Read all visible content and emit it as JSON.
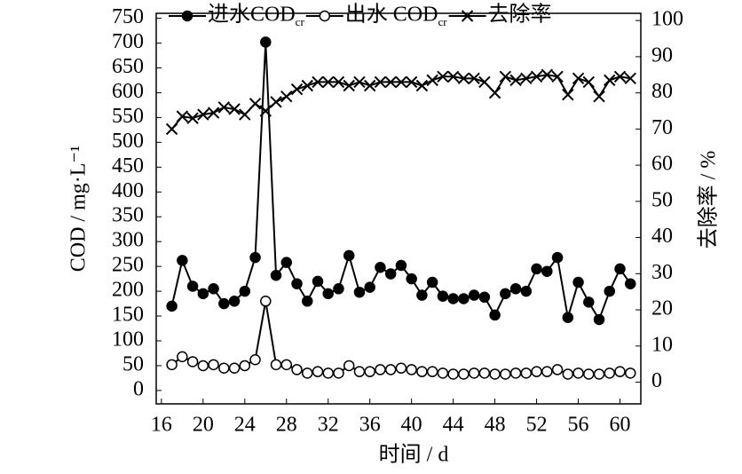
{
  "chart_data": {
    "type": "line",
    "xlabel": "时间 / d",
    "ylabel": "COD / mg·L⁻¹",
    "y2label": "去除率 / %",
    "xlim": [
      15.5,
      62
    ],
    "xticks": [
      16,
      20,
      24,
      28,
      32,
      36,
      40,
      44,
      48,
      52,
      56,
      60
    ],
    "ylim": [
      -27,
      760
    ],
    "yticks": [
      0,
      50,
      100,
      150,
      200,
      250,
      300,
      350,
      400,
      450,
      500,
      550,
      600,
      650,
      700,
      750
    ],
    "y2lim": [
      -6,
      102
    ],
    "y2ticks": [
      0,
      10,
      20,
      30,
      40,
      50,
      60,
      70,
      80,
      90,
      100
    ],
    "x": [
      17,
      18,
      19,
      20,
      21,
      22,
      23,
      24,
      25,
      26,
      27,
      28,
      29,
      30,
      31,
      32,
      33,
      34,
      35,
      36,
      37,
      38,
      39,
      40,
      41,
      42,
      43,
      44,
      45,
      46,
      47,
      48,
      49,
      50,
      51,
      52,
      53,
      54,
      55,
      56,
      57,
      58,
      59,
      60,
      61
    ],
    "series": [
      {
        "name": "进水COD",
        "name_sub": "cr",
        "marker": "filled",
        "color": "#000000",
        "values": [
          170,
          262,
          210,
          195,
          205,
          175,
          180,
          200,
          268,
          702,
          232,
          258,
          215,
          180,
          220,
          195,
          205,
          272,
          198,
          208,
          248,
          235,
          252,
          225,
          192,
          218,
          190,
          185,
          185,
          192,
          188,
          152,
          195,
          205,
          200,
          245,
          240,
          268,
          147,
          218,
          178,
          143,
          200,
          245,
          215
        ]
      },
      {
        "name": "出水 COD",
        "name_sub": "cr",
        "marker": "open",
        "color": "#000000",
        "values": [
          52,
          68,
          58,
          50,
          52,
          45,
          45,
          50,
          62,
          180,
          52,
          52,
          42,
          35,
          38,
          35,
          35,
          50,
          38,
          38,
          42,
          42,
          45,
          42,
          38,
          38,
          35,
          33,
          33,
          35,
          35,
          33,
          33,
          35,
          35,
          38,
          38,
          42,
          33,
          35,
          33,
          33,
          35,
          38,
          35
        ]
      },
      {
        "name": "去除率",
        "marker": "cross",
        "color": "#000000",
        "axis": "y2",
        "values": [
          70,
          73.5,
          73,
          74,
          74.5,
          76,
          75.5,
          74,
          77,
          75,
          77.5,
          79,
          81,
          82,
          83,
          83,
          83,
          82,
          83,
          82,
          83,
          83,
          83,
          83,
          82,
          83.5,
          84.5,
          84.5,
          84,
          84,
          83,
          80,
          84.5,
          83.5,
          84,
          84.5,
          85,
          84.5,
          79.5,
          84,
          83,
          79,
          83.5,
          84.5,
          84
        ]
      }
    ]
  }
}
